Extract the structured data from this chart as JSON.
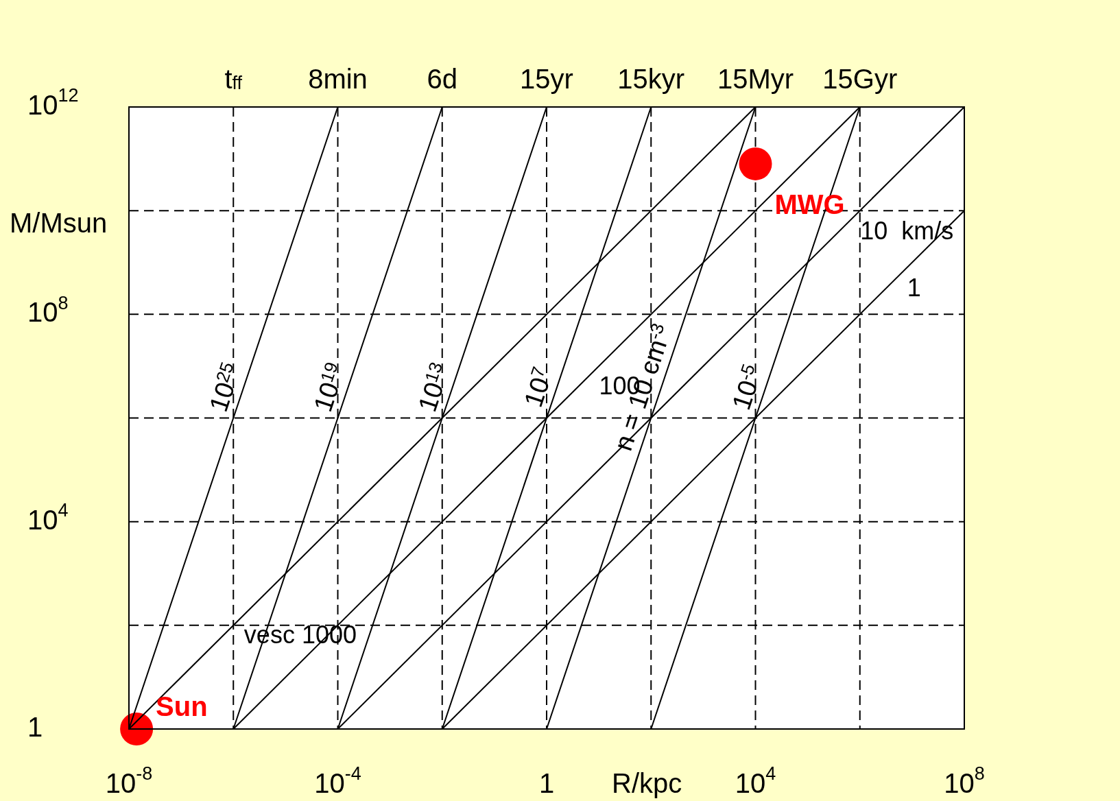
{
  "chart_data": {
    "type": "line",
    "xlabel": "R/kpc",
    "ylabel": "M/Msun",
    "log": "xy",
    "grid": true,
    "legend": false,
    "marker": "none",
    "line_style": "solid",
    "xlim": [
      1e-08,
      100000000.0
    ],
    "ylim": [
      1,
      1000000000000.0
    ],
    "xticks": [
      {
        "value": 1e-08,
        "label": "10$^{-8}$"
      },
      {
        "value": 1e-06,
        "label": null
      },
      {
        "value": 0.0001,
        "label": "10$^{-4}$"
      },
      {
        "value": 0.01,
        "label": null
      },
      1,
      {
        "value": 100,
        "label": null
      },
      {
        "value": 10000.0,
        "label": "10$^{4}$"
      },
      {
        "value": 1000000.0,
        "label": null
      },
      {
        "value": 100000000.0,
        "label": "10$^{8}$"
      }
    ],
    "yticks": [
      1,
      {
        "value": 100,
        "label": null
      },
      {
        "value": 10000.0,
        "label": "10$^{4}$"
      },
      {
        "value": 1000000.0,
        "label": null
      },
      {
        "value": 100000000.0,
        "label": "10$^{8}$"
      },
      {
        "value": 10000000000.0,
        "label": null
      },
      {
        "value": 1000000000000.0,
        "label": "10$^{12}$"
      }
    ],
    "annotations": [
      "t$_{ff}$",
      {
        "text": "8min",
        "x": 0.0001,
        "y": 1000000000000.0
      },
      {
        "text": "6d",
        "x": 0.01,
        "y": 1000000000000.0
      },
      {
        "text": "15yr",
        "x": 1,
        "y": 1000000000000.0
      },
      {
        "text": "15kyr",
        "x": 100,
        "y": 1000000000000.0
      },
      {
        "text": "15Myr",
        "x": 10000.0,
        "y": 1000000000000.0
      },
      {
        "text": "15Gyr",
        "x": 1000000.0,
        "y": 1000000000000.0
      }
    ],
    "series": [
      {
        "name": "10$^{25}$",
        "color": "#000000",
        "x": [
          1e-08,
          0.0001
        ],
        "values": [
          1,
          1000000000000.0
        ]
      },
      {
        "name": "10$^{19}$",
        "color": "#000000",
        "x": [
          1e-06,
          0.01
        ],
        "values": [
          1,
          1000000000000.0
        ]
      },
      {
        "name": "10$^{13}$",
        "color": "#000000",
        "x": [
          0.0001,
          1
        ],
        "values": [
          1,
          1000000000000.0
        ]
      },
      {
        "name": "10$^{7}$",
        "color": "#000000",
        "x": [
          0.01,
          100
        ],
        "values": [
          1,
          1000000000000.0
        ]
      },
      {
        "name": "n = 10 cm$^{-3}$",
        "color": "#000000",
        "x": [
          1,
          10000.0
        ],
        "values": [
          1,
          1000000000000.0
        ]
      },
      {
        "name": "10$^{-5}$",
        "color": "#000000",
        "x": [
          100,
          1000000.0
        ],
        "values": [
          1,
          1000000000000.0
        ]
      },
      {
        "name": "vesc 1000",
        "color": "#000000",
        "x": [
          1e-08,
          10000.0
        ],
        "values": [
          1,
          1000000000000.0
        ]
      },
      {
        "name": "100",
        "color": "#000000",
        "x": [
          1e-06,
          1000000.0
        ],
        "values": [
          1,
          1000000000000.0
        ]
      },
      {
        "name": "10  km/s",
        "color": "#000000",
        "x": [
          0.0001,
          100000000.0
        ],
        "values": [
          1,
          1000000000000.0
        ]
      },
      {
        "name": "1",
        "color": "#000000",
        "x": [
          0.01,
          100000000.0
        ],
        "values": [
          1,
          10000000000.0
        ]
      },
      {
        "name": "Sun",
        "type": "scatter",
        "marker": "circle",
        "color": "#ff0000",
        "x": [
          1.4e-08
        ],
        "values": [
          1
        ]
      },
      {
        "name": "MWG",
        "type": "scatter",
        "marker": "circle",
        "color": "#ff0000",
        "x": [
          10000.0
        ],
        "values": [
          80000000000.0
        ]
      }
    ]
  }
}
